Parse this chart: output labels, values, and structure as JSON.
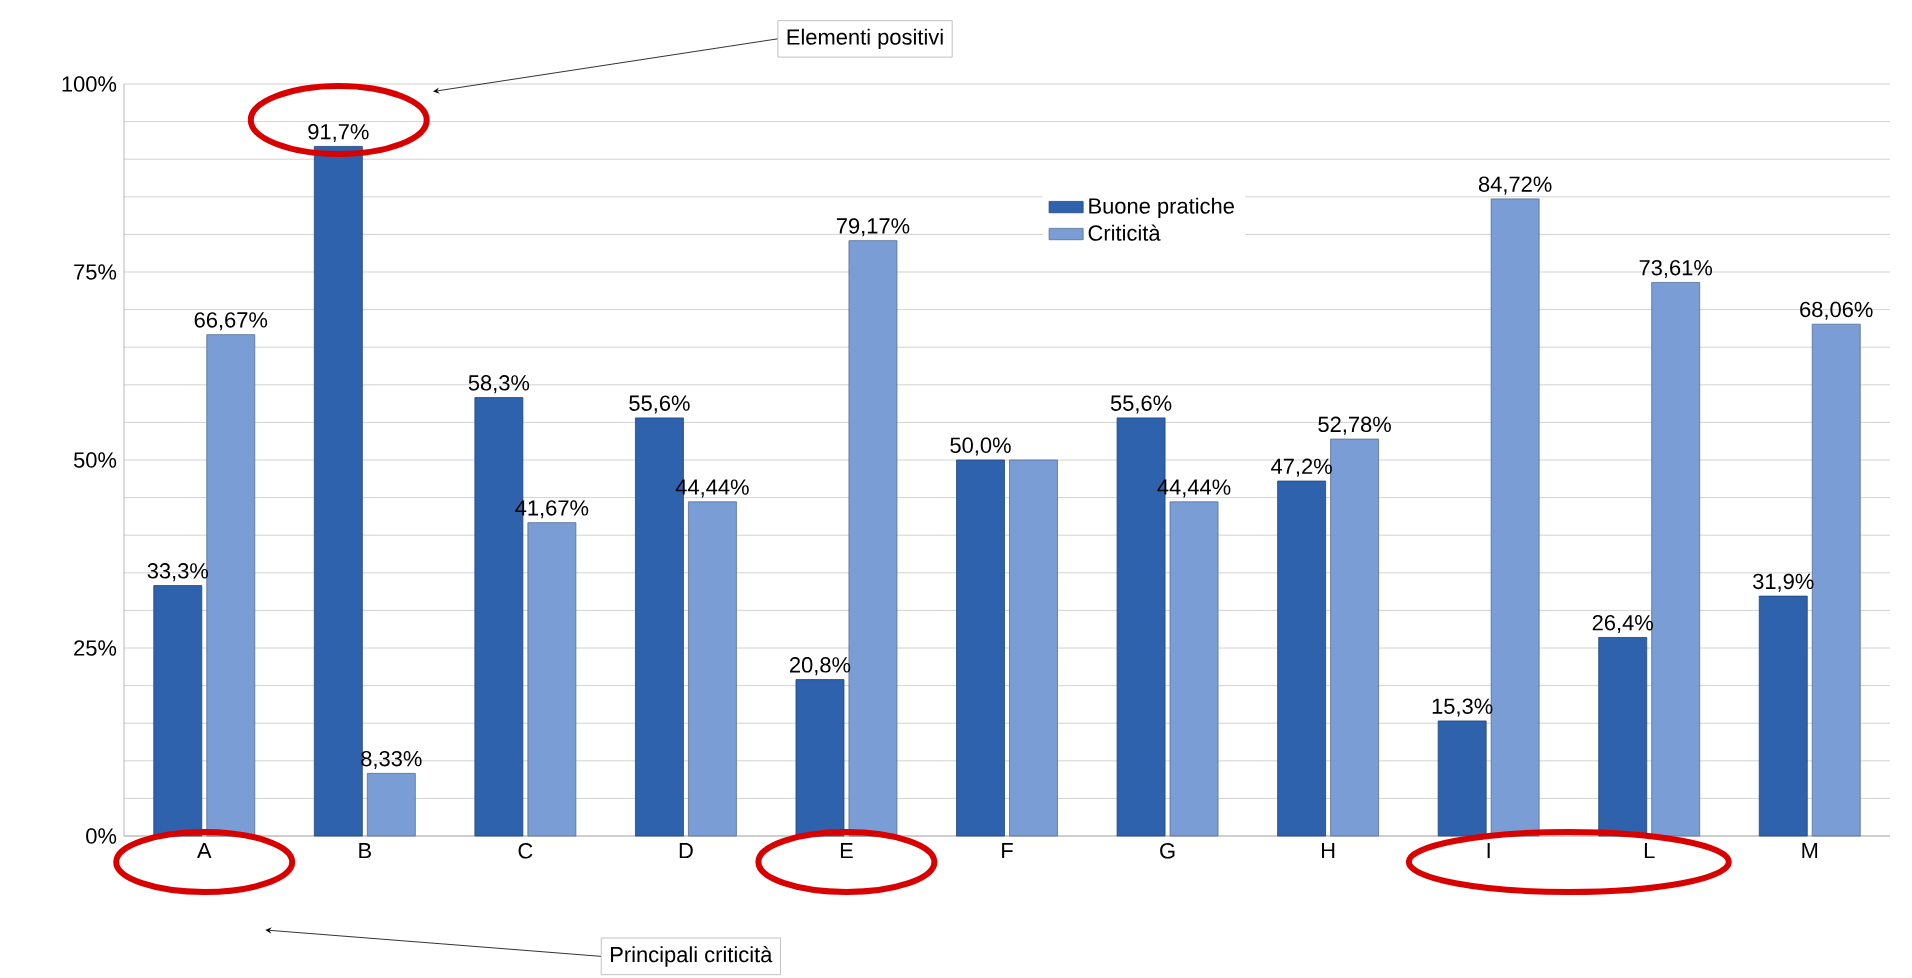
{
  "chart_data": {
    "type": "bar",
    "categories": [
      "A",
      "B",
      "C",
      "D",
      "E",
      "F",
      "G",
      "H",
      "I",
      "L",
      "M"
    ],
    "series": [
      {
        "name": "Buone pratiche",
        "color": "#2f62ad",
        "values": [
          33.3,
          91.7,
          58.3,
          55.6,
          20.8,
          50.0,
          55.6,
          47.2,
          15.3,
          26.4,
          31.9
        ],
        "value_labels": [
          "33,3%",
          "91,7%",
          "58,3%",
          "55,6%",
          "20,8%",
          "50,0%",
          "55,6%",
          "47,2%",
          "15,3%",
          "26,4%",
          "31,9%"
        ]
      },
      {
        "name": "Criticità",
        "color": "#7a9dd6",
        "values": [
          66.67,
          8.33,
          41.67,
          44.44,
          79.17,
          50.0,
          44.44,
          52.78,
          84.72,
          73.61,
          68.06
        ],
        "value_labels": [
          "66,67%",
          "8,33%",
          "41,67%",
          "44,44%",
          "79,17%",
          null,
          "44,44%",
          "52,78%",
          "84,72%",
          "73,61%",
          "68,06%"
        ]
      }
    ],
    "ylim": [
      0,
      100
    ],
    "yticks": [
      {
        "value": 0,
        "label": "0%"
      },
      {
        "value": 5,
        "label": null
      },
      {
        "value": 10,
        "label": null
      },
      {
        "value": 15,
        "label": null
      },
      {
        "value": 20,
        "label": null
      },
      {
        "value": 25,
        "label": "25%"
      },
      {
        "value": 30,
        "label": null
      },
      {
        "value": 35,
        "label": null
      },
      {
        "value": 40,
        "label": null
      },
      {
        "value": 45,
        "label": null
      },
      {
        "value": 50,
        "label": "50%"
      },
      {
        "value": 55,
        "label": null
      },
      {
        "value": 60,
        "label": null
      },
      {
        "value": 65,
        "label": null
      },
      {
        "value": 70,
        "label": null
      },
      {
        "value": 75,
        "label": "75%"
      },
      {
        "value": 80,
        "label": null
      },
      {
        "value": 85,
        "label": null
      },
      {
        "value": 90,
        "label": null
      },
      {
        "value": 95,
        "label": null
      },
      {
        "value": 100,
        "label": "100%"
      }
    ],
    "grid": "y",
    "legend": "top",
    "annotations": [
      "Elementi positivi",
      "Principali criticità"
    ]
  }
}
